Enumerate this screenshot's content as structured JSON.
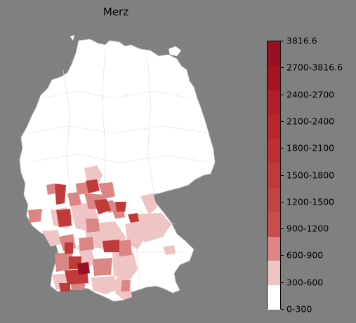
{
  "title": "Merz",
  "legend": {
    "labels": [
      "3816.6",
      "2700-3816.6",
      "2400-2700",
      "2100-2400",
      "1800-2100",
      "1500-1800",
      "1200-1500",
      "900-1200",
      "600-900",
      "300-600",
      "0-300"
    ],
    "colors_top_to_bottom": [
      "#9a0f22",
      "#a4151f",
      "#b01f2a",
      "#b8262e",
      "#bd2f33",
      "#c13a3a",
      "#c44343",
      "#c84d4d",
      "#db8585",
      "#efc4c4",
      "#ffffff"
    ]
  },
  "map": {
    "region": "Germany (districts)",
    "background": "#808080",
    "base_fill": "#ffffff",
    "border_color": "#d0d0d0"
  }
}
